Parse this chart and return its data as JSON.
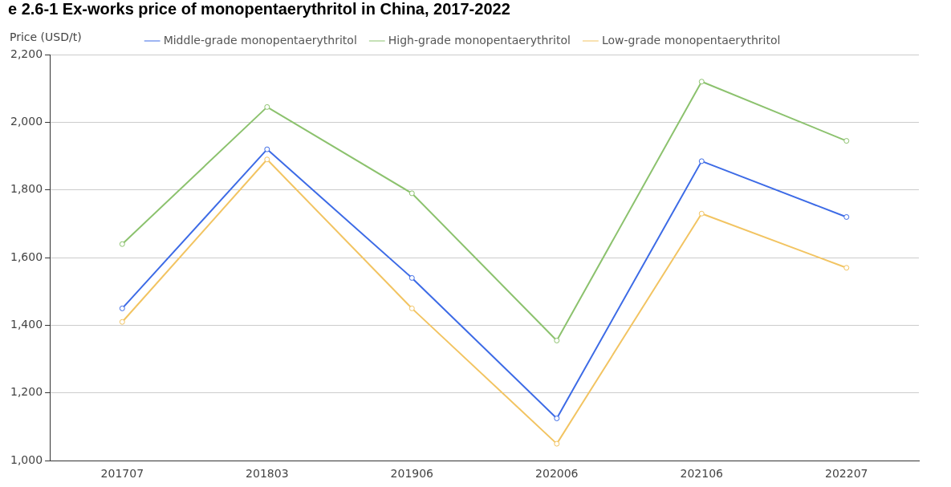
{
  "chart_data": {
    "type": "line",
    "title": "e 2.6-1 Ex-works price of monopentaerythritol in China, 2017-2022",
    "ylabel": "Price (USD/t)",
    "categories": [
      "201707",
      "201803",
      "201906",
      "202006",
      "202106",
      "202207"
    ],
    "series": [
      {
        "name": "Middle-grade monopentaerythritol",
        "color": "#3d6be6",
        "values": [
          1450,
          1920,
          1540,
          1125,
          1885,
          1720
        ]
      },
      {
        "name": "High-grade monopentaerythritol",
        "color": "#8cc26e",
        "values": [
          1640,
          2045,
          1790,
          1355,
          2120,
          1945
        ]
      },
      {
        "name": "Low-grade monopentaerythritol",
        "color": "#f2c462",
        "values": [
          1410,
          1890,
          1450,
          1050,
          1730,
          1570
        ]
      }
    ],
    "ylim": [
      1000,
      2200
    ],
    "yticks": [
      {
        "value": 1000,
        "label": "1,000"
      },
      {
        "value": 1200,
        "label": "1,200"
      },
      {
        "value": 1400,
        "label": "1,400"
      },
      {
        "value": 1600,
        "label": "1,600"
      },
      {
        "value": 1800,
        "label": "1,800"
      },
      {
        "value": 2000,
        "label": "2,000"
      },
      {
        "value": 2200,
        "label": "2,200"
      }
    ],
    "grid": "y",
    "legend": "top",
    "marker": "circle",
    "line_style": "solid"
  }
}
